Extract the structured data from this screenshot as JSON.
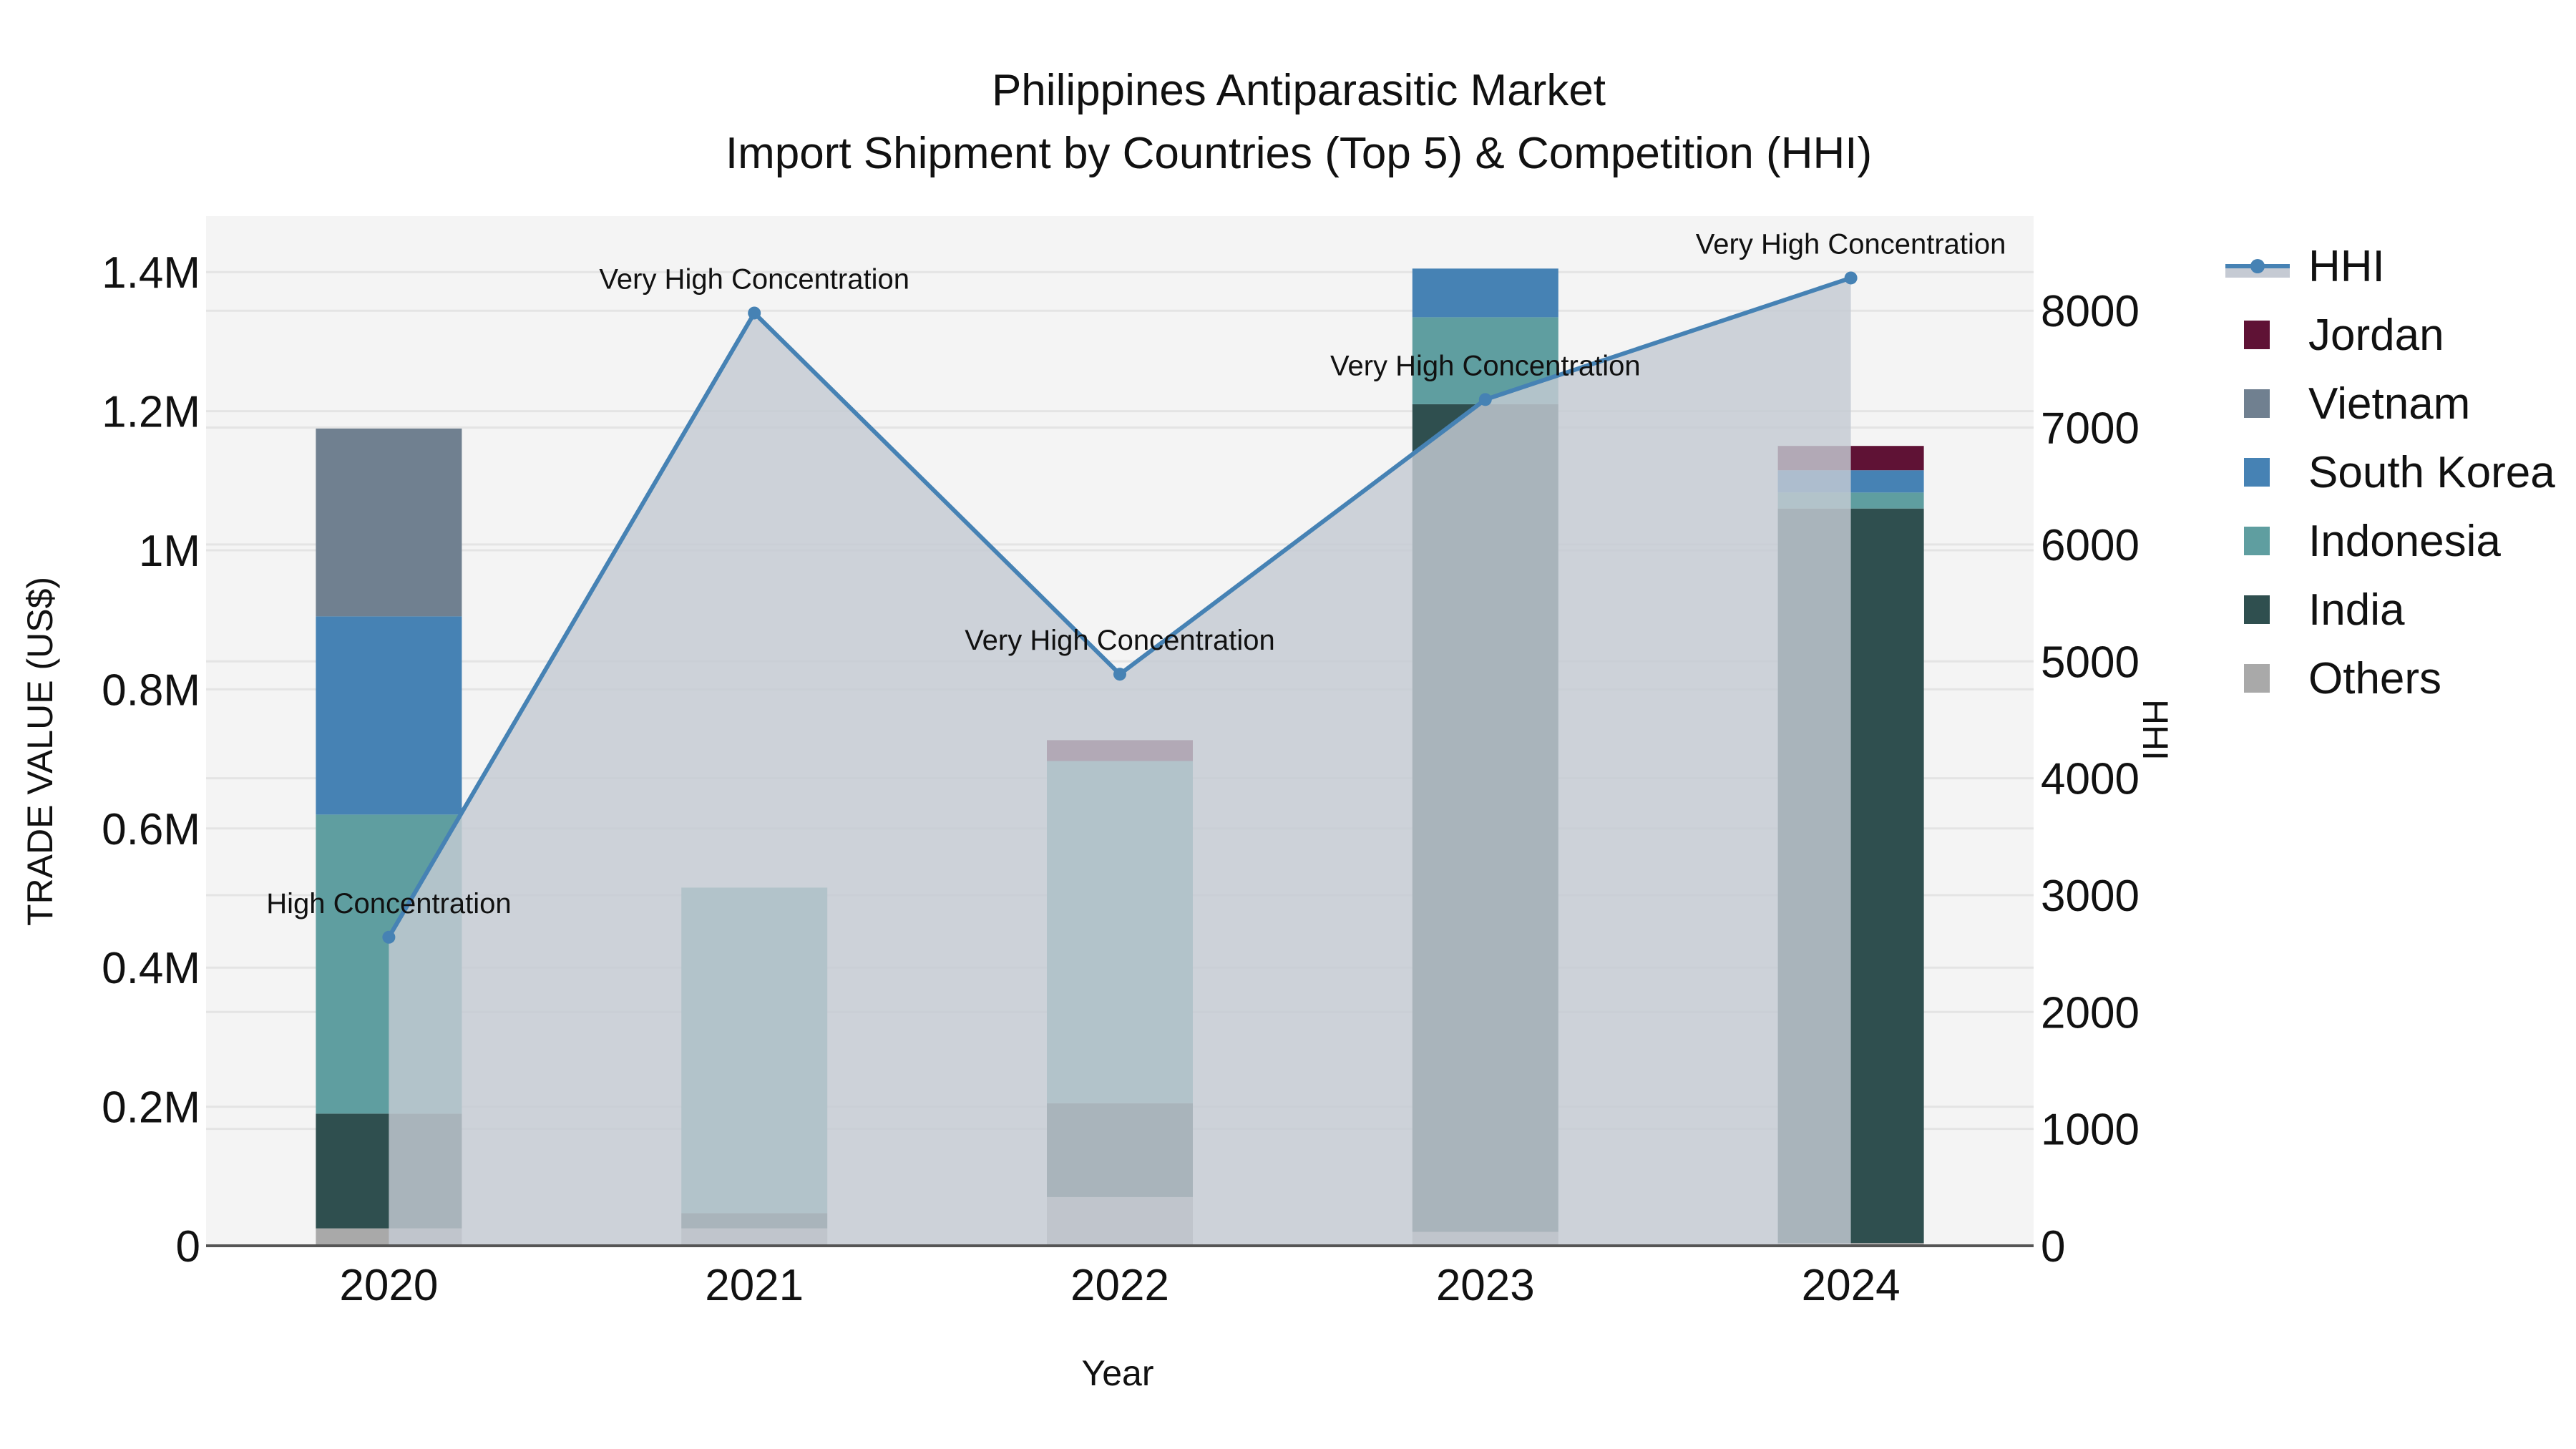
{
  "title": {
    "line1": "Philippines Antiparasitic Market",
    "line2": "Import Shipment by Countries (Top 5) & Competition (HHI)"
  },
  "axes": {
    "x_title": "Year",
    "y_left_title": "TRADE VALUE (US$)",
    "y_right_title": "HHI",
    "y_left_ticks": [
      "0",
      "0.2M",
      "0.4M",
      "0.6M",
      "0.8M",
      "1M",
      "1.2M",
      "1.4M"
    ],
    "y_right_ticks": [
      "0",
      "1000",
      "2000",
      "3000",
      "4000",
      "5000",
      "6000",
      "7000",
      "8000"
    ],
    "x_ticks": [
      "2020",
      "2021",
      "2022",
      "2023",
      "2024"
    ]
  },
  "legend": {
    "items": [
      {
        "label": "HHI",
        "type": "line",
        "color": "#4682B4"
      },
      {
        "label": "Jordan",
        "type": "bar",
        "color": "#5F1235"
      },
      {
        "label": "Vietnam",
        "type": "bar",
        "color": "#708090"
      },
      {
        "label": "South Korea",
        "type": "bar",
        "color": "#4682B4"
      },
      {
        "label": "Indonesia",
        "type": "bar",
        "color": "#5F9EA0"
      },
      {
        "label": "India",
        "type": "bar",
        "color": "#2F4F4F"
      },
      {
        "label": "Others",
        "type": "bar",
        "color": "#A9A9A9"
      }
    ]
  },
  "colors": {
    "plot_bg": "#F4F4F4",
    "grid": "#E4E4E4",
    "hhi_line": "#4682B4",
    "hhi_fill": "#C5CAD3",
    "axis_line": "#555555"
  },
  "chart_data": {
    "type": "bar",
    "stacked": true,
    "title": "Philippines Antiparasitic Market — Import Shipment by Countries (Top 5) & Competition (HHI)",
    "xlabel": "Year",
    "ylabel": "TRADE VALUE (US$)",
    "y2label": "HHI",
    "categories": [
      "2020",
      "2021",
      "2022",
      "2023",
      "2024"
    ],
    "ylim": [
      0,
      1480000
    ],
    "y2lim": [
      0,
      8900
    ],
    "grid": true,
    "legend_position": "right",
    "series": [
      {
        "name": "Others",
        "color": "#A9A9A9",
        "values": [
          25000,
          25000,
          70000,
          20000,
          4000
        ]
      },
      {
        "name": "India",
        "color": "#2F4F4F",
        "values": [
          165000,
          22000,
          135000,
          1190000,
          1056000
        ]
      },
      {
        "name": "Indonesia",
        "color": "#5F9EA0",
        "values": [
          430000,
          468000,
          492000,
          125000,
          23000
        ]
      },
      {
        "name": "South Korea",
        "color": "#4682B4",
        "values": [
          285000,
          0,
          0,
          70000,
          32000
        ]
      },
      {
        "name": "Vietnam",
        "color": "#708090",
        "values": [
          270000,
          0,
          0,
          0,
          0
        ]
      },
      {
        "name": "Jordan",
        "color": "#5F1235",
        "values": [
          0,
          0,
          30000,
          0,
          35000
        ]
      }
    ],
    "line_series": {
      "name": "HHI",
      "axis": "right",
      "type": "area-line",
      "color": "#4682B4",
      "values": [
        2640,
        7980,
        4890,
        7240,
        8280
      ],
      "annotations": [
        "High Concentration",
        "Very High Concentration",
        "Very High Concentration",
        "Very High Concentration",
        "Very High Concentration"
      ]
    }
  }
}
